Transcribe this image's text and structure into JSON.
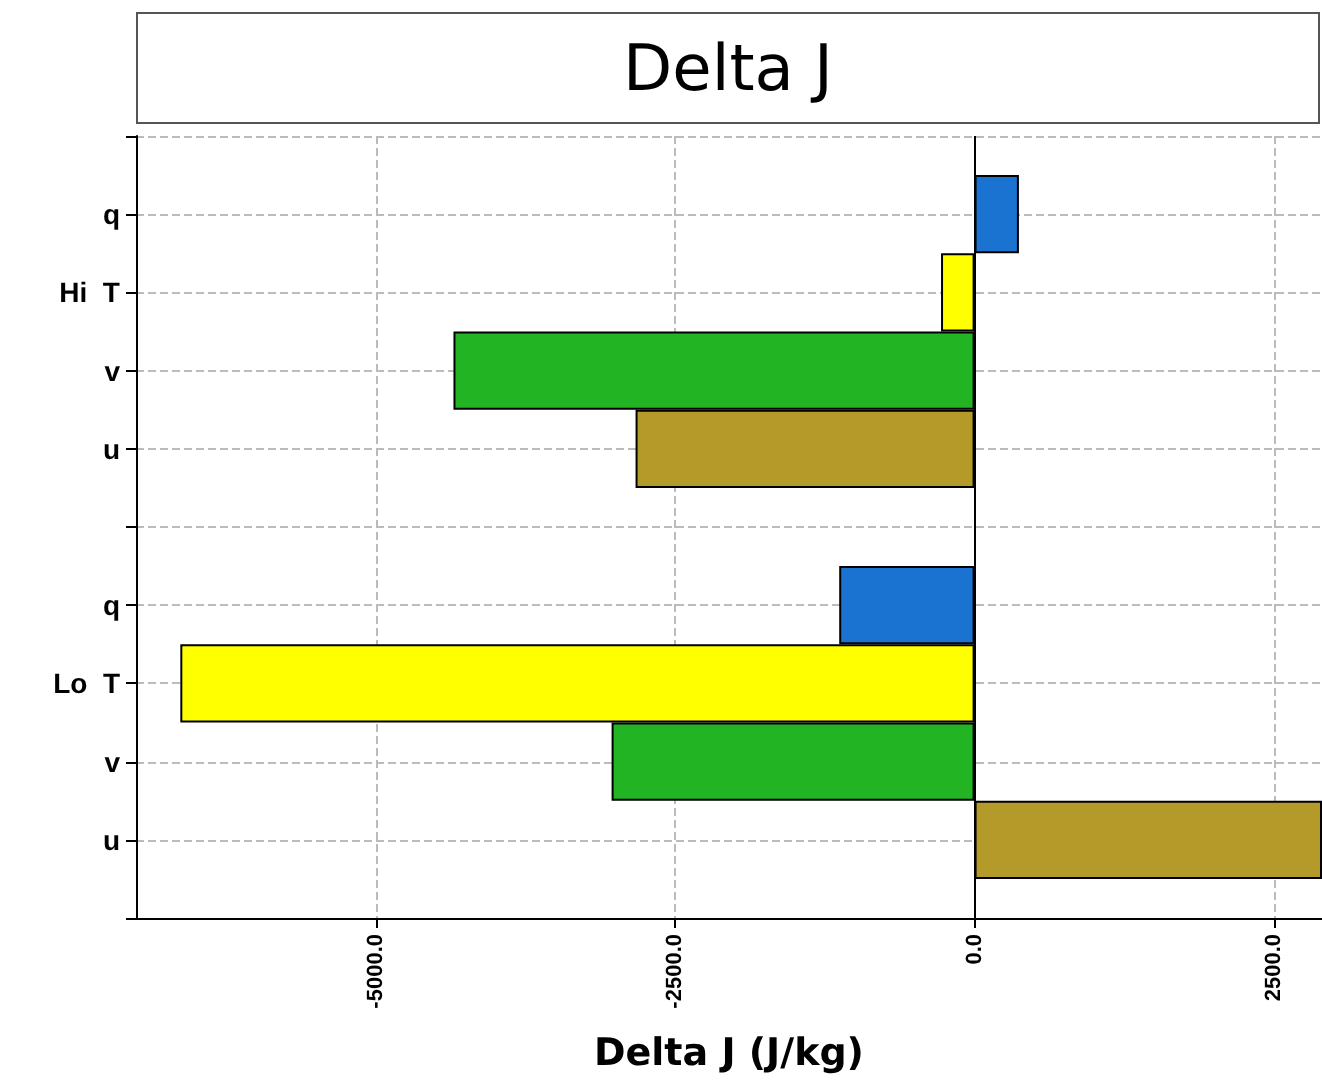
{
  "chart_data": {
    "type": "bar",
    "orientation": "horizontal",
    "title": "Delta J",
    "xlabel": "Delta J (J/kg)",
    "categories": [
      null,
      "q",
      "Hi  T",
      "v",
      "u",
      null,
      "q",
      "Lo  T",
      "v",
      "u",
      null
    ],
    "values": [
      null,
      370,
      -280,
      -4350,
      -2830,
      null,
      -1130,
      -6630,
      -3030,
      2900,
      null
    ],
    "colors": [
      null,
      "#1a73d0",
      "#ffff00",
      "#22b422",
      "#b49a28",
      null,
      "#1a73d0",
      "#ffff00",
      "#22b422",
      "#b49a28",
      null
    ],
    "xlim": [
      -7000,
      2900
    ],
    "xticks": [
      {
        "value": -5000,
        "label": "-5000.0"
      },
      {
        "value": -2500,
        "label": "-2500.0"
      },
      {
        "value": 0,
        "label": "0.0"
      },
      {
        "value": 2500,
        "label": "2500.0"
      }
    ],
    "ref_lines": [
      {
        "axis": "x",
        "value": 0,
        "color": "#000000"
      }
    ],
    "grid": true
  }
}
